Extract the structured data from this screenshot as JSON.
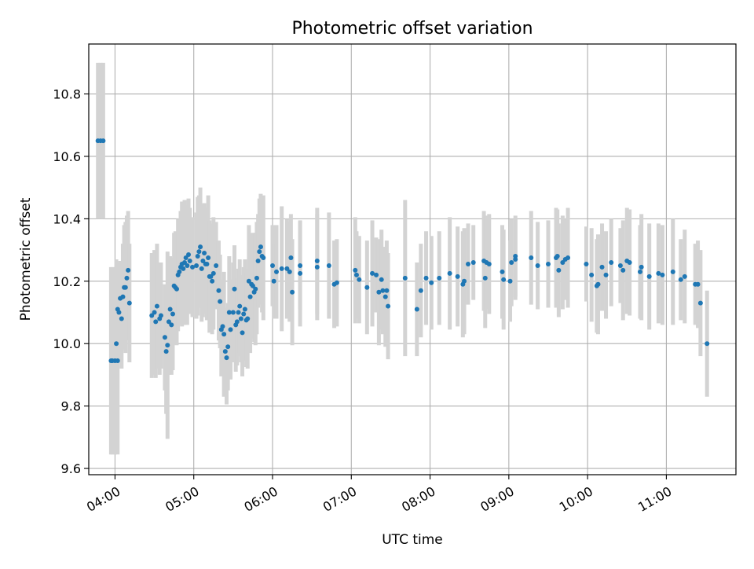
{
  "chart_data": {
    "type": "scatter",
    "title": "Photometric offset variation",
    "xlabel": "UTC time",
    "ylabel": "Photometric offset",
    "x_ticks": [
      "04:00",
      "05:00",
      "06:00",
      "07:00",
      "08:00",
      "09:00",
      "10:00",
      "11:00"
    ],
    "y_ticks": [
      "9.6",
      "9.8",
      "10.0",
      "10.2",
      "10.4",
      "10.6",
      "10.8"
    ],
    "xlim": [
      "03:40",
      "11:53"
    ],
    "ylim": [
      9.58,
      10.96
    ],
    "grid": true,
    "colors": {
      "points": "#1f77b4",
      "errorbars": "#d3d3d3",
      "grid": "#b0b0b0"
    },
    "points": [
      {
        "t": "03:47",
        "y": 10.65,
        "err": 0.25
      },
      {
        "t": "03:49",
        "y": 10.65,
        "err": 0.25
      },
      {
        "t": "03:51",
        "y": 10.65,
        "err": 0.25
      },
      {
        "t": "03:57",
        "y": 9.945,
        "err": 0.3
      },
      {
        "t": "03:58",
        "y": 9.945,
        "err": 0.3
      },
      {
        "t": "04:00",
        "y": 9.945,
        "err": 0.3
      },
      {
        "t": "04:02",
        "y": 9.945,
        "err": 0.3
      },
      {
        "t": "04:01",
        "y": 10.0,
        "err": 0.27
      },
      {
        "t": "04:02",
        "y": 10.11,
        "err": 0.15
      },
      {
        "t": "04:03",
        "y": 10.1,
        "err": 0.16
      },
      {
        "t": "04:04",
        "y": 10.145,
        "err": 0.12
      },
      {
        "t": "04:05",
        "y": 10.08,
        "err": 0.16
      },
      {
        "t": "04:06",
        "y": 10.15,
        "err": 0.17
      },
      {
        "t": "04:07",
        "y": 10.18,
        "err": 0.2
      },
      {
        "t": "04:08",
        "y": 10.18,
        "err": 0.21
      },
      {
        "t": "04:09",
        "y": 10.21,
        "err": 0.2
      },
      {
        "t": "04:10",
        "y": 10.235,
        "err": 0.19
      },
      {
        "t": "04:11",
        "y": 10.13,
        "err": 0.19
      },
      {
        "t": "04:28",
        "y": 10.09,
        "err": 0.2
      },
      {
        "t": "04:30",
        "y": 10.1,
        "err": 0.2
      },
      {
        "t": "04:31",
        "y": 10.07,
        "err": 0.18
      },
      {
        "t": "04:32",
        "y": 10.12,
        "err": 0.2
      },
      {
        "t": "04:34",
        "y": 10.08,
        "err": 0.18
      },
      {
        "t": "04:35",
        "y": 10.09,
        "err": 0.17
      },
      {
        "t": "04:38",
        "y": 10.02,
        "err": 0.17
      },
      {
        "t": "04:39",
        "y": 9.975,
        "err": 0.2
      },
      {
        "t": "04:40",
        "y": 9.995,
        "err": 0.3
      },
      {
        "t": "04:41",
        "y": 10.07,
        "err": 0.17
      },
      {
        "t": "04:42",
        "y": 10.11,
        "err": 0.17
      },
      {
        "t": "04:43",
        "y": 10.06,
        "err": 0.16
      },
      {
        "t": "04:44",
        "y": 10.095,
        "err": 0.18
      },
      {
        "t": "04:45",
        "y": 10.185,
        "err": 0.17
      },
      {
        "t": "04:46",
        "y": 10.18,
        "err": 0.18
      },
      {
        "t": "04:47",
        "y": 10.175,
        "err": 0.18
      },
      {
        "t": "04:48",
        "y": 10.22,
        "err": 0.18
      },
      {
        "t": "04:49",
        "y": 10.23,
        "err": 0.17
      },
      {
        "t": "04:50",
        "y": 10.245,
        "err": 0.18
      },
      {
        "t": "04:51",
        "y": 10.255,
        "err": 0.2
      },
      {
        "t": "04:52",
        "y": 10.24,
        "err": 0.18
      },
      {
        "t": "04:53",
        "y": 10.26,
        "err": 0.2
      },
      {
        "t": "04:54",
        "y": 10.275,
        "err": 0.17
      },
      {
        "t": "04:55",
        "y": 10.25,
        "err": 0.19
      },
      {
        "t": "04:56",
        "y": 10.285,
        "err": 0.18
      },
      {
        "t": "04:57",
        "y": 10.265,
        "err": 0.17
      },
      {
        "t": "04:59",
        "y": 10.245,
        "err": 0.16
      },
      {
        "t": "05:02",
        "y": 10.25,
        "err": 0.17
      },
      {
        "t": "05:03",
        "y": 10.28,
        "err": 0.19
      },
      {
        "t": "05:04",
        "y": 10.295,
        "err": 0.18
      },
      {
        "t": "05:05",
        "y": 10.31,
        "err": 0.19
      },
      {
        "t": "05:06",
        "y": 10.24,
        "err": 0.17
      },
      {
        "t": "05:07",
        "y": 10.265,
        "err": 0.18
      },
      {
        "t": "05:08",
        "y": 10.29,
        "err": 0.16
      },
      {
        "t": "05:09",
        "y": 10.255,
        "err": 0.16
      },
      {
        "t": "05:10",
        "y": 10.255,
        "err": 0.18
      },
      {
        "t": "05:11",
        "y": 10.275,
        "err": 0.2
      },
      {
        "t": "05:12",
        "y": 10.215,
        "err": 0.18
      },
      {
        "t": "05:13",
        "y": 10.215,
        "err": 0.17
      },
      {
        "t": "05:14",
        "y": 10.2,
        "err": 0.17
      },
      {
        "t": "05:15",
        "y": 10.225,
        "err": 0.18
      },
      {
        "t": "05:17",
        "y": 10.25,
        "err": 0.14
      },
      {
        "t": "05:19",
        "y": 10.17,
        "err": 0.16
      },
      {
        "t": "05:20",
        "y": 10.135,
        "err": 0.15
      },
      {
        "t": "05:21",
        "y": 10.045,
        "err": 0.15
      },
      {
        "t": "05:22",
        "y": 10.055,
        "err": 0.15
      },
      {
        "t": "05:23",
        "y": 10.03,
        "err": 0.2
      },
      {
        "t": "05:24",
        "y": 9.975,
        "err": 0.14
      },
      {
        "t": "05:25",
        "y": 9.955,
        "err": 0.15
      },
      {
        "t": "05:26",
        "y": 9.99,
        "err": 0.14
      },
      {
        "t": "05:27",
        "y": 10.1,
        "err": 0.18
      },
      {
        "t": "05:28",
        "y": 10.045,
        "err": 0.16
      },
      {
        "t": "05:30",
        "y": 10.1,
        "err": 0.16
      },
      {
        "t": "05:31",
        "y": 10.175,
        "err": 0.14
      },
      {
        "t": "05:32",
        "y": 10.06,
        "err": 0.15
      },
      {
        "t": "05:33",
        "y": 10.07,
        "err": 0.14
      },
      {
        "t": "05:34",
        "y": 10.1,
        "err": 0.14
      },
      {
        "t": "05:35",
        "y": 10.12,
        "err": 0.15
      },
      {
        "t": "05:36",
        "y": 10.08,
        "err": 0.14
      },
      {
        "t": "05:37",
        "y": 10.035,
        "err": 0.14
      },
      {
        "t": "05:38",
        "y": 10.095,
        "err": 0.15
      },
      {
        "t": "05:39",
        "y": 10.11,
        "err": 0.16
      },
      {
        "t": "05:40",
        "y": 10.075,
        "err": 0.15
      },
      {
        "t": "05:41",
        "y": 10.08,
        "err": 0.16
      },
      {
        "t": "05:42",
        "y": 10.2,
        "err": 0.18
      },
      {
        "t": "05:43",
        "y": 10.15,
        "err": 0.18
      },
      {
        "t": "05:44",
        "y": 10.19,
        "err": 0.16
      },
      {
        "t": "05:45",
        "y": 10.185,
        "err": 0.17
      },
      {
        "t": "05:46",
        "y": 10.165,
        "err": 0.16
      },
      {
        "t": "05:47",
        "y": 10.175,
        "err": 0.18
      },
      {
        "t": "05:48",
        "y": 10.21,
        "err": 0.18
      },
      {
        "t": "05:49",
        "y": 10.265,
        "err": 0.15
      },
      {
        "t": "05:50",
        "y": 10.295,
        "err": 0.17
      },
      {
        "t": "05:51",
        "y": 10.31,
        "err": 0.17
      },
      {
        "t": "05:52",
        "y": 10.28,
        "err": 0.18
      },
      {
        "t": "05:53",
        "y": 10.275,
        "err": 0.2
      },
      {
        "t": "06:00",
        "y": 10.25,
        "err": 0.13
      },
      {
        "t": "06:01",
        "y": 10.2,
        "err": 0.12
      },
      {
        "t": "06:03",
        "y": 10.23,
        "err": 0.15
      },
      {
        "t": "06:07",
        "y": 10.24,
        "err": 0.2
      },
      {
        "t": "06:11",
        "y": 10.24,
        "err": 0.16
      },
      {
        "t": "06:13",
        "y": 10.23,
        "err": 0.16
      },
      {
        "t": "06:14",
        "y": 10.275,
        "err": 0.14
      },
      {
        "t": "06:15",
        "y": 10.165,
        "err": 0.17
      },
      {
        "t": "06:21",
        "y": 10.225,
        "err": 0.17
      },
      {
        "t": "06:21",
        "y": 10.25,
        "err": 0.14
      },
      {
        "t": "06:34",
        "y": 10.265,
        "err": 0.17
      },
      {
        "t": "06:34",
        "y": 10.245,
        "err": 0.17
      },
      {
        "t": "06:43",
        "y": 10.25,
        "err": 0.17
      },
      {
        "t": "06:47",
        "y": 10.19,
        "err": 0.14
      },
      {
        "t": "06:49",
        "y": 10.195,
        "err": 0.14
      },
      {
        "t": "07:03",
        "y": 10.235,
        "err": 0.17
      },
      {
        "t": "07:04",
        "y": 10.22,
        "err": 0.14
      },
      {
        "t": "07:06",
        "y": 10.205,
        "err": 0.14
      },
      {
        "t": "07:12",
        "y": 10.18,
        "err": 0.15
      },
      {
        "t": "07:16",
        "y": 10.225,
        "err": 0.17
      },
      {
        "t": "07:19",
        "y": 10.22,
        "err": 0.12
      },
      {
        "t": "07:21",
        "y": 10.165,
        "err": 0.17
      },
      {
        "t": "07:23",
        "y": 10.205,
        "err": 0.16
      },
      {
        "t": "07:24",
        "y": 10.17,
        "err": 0.14
      },
      {
        "t": "07:26",
        "y": 10.15,
        "err": 0.16
      },
      {
        "t": "07:27",
        "y": 10.17,
        "err": 0.16
      },
      {
        "t": "07:28",
        "y": 10.12,
        "err": 0.17
      },
      {
        "t": "07:41",
        "y": 10.21,
        "err": 0.25
      },
      {
        "t": "07:50",
        "y": 10.11,
        "err": 0.15
      },
      {
        "t": "07:53",
        "y": 10.17,
        "err": 0.15
      },
      {
        "t": "07:57",
        "y": 10.21,
        "err": 0.15
      },
      {
        "t": "08:01",
        "y": 10.195,
        "err": 0.15
      },
      {
        "t": "08:07",
        "y": 10.21,
        "err": 0.15
      },
      {
        "t": "08:15",
        "y": 10.225,
        "err": 0.18
      },
      {
        "t": "08:21",
        "y": 10.215,
        "err": 0.16
      },
      {
        "t": "08:25",
        "y": 10.19,
        "err": 0.17
      },
      {
        "t": "08:26",
        "y": 10.2,
        "err": 0.17
      },
      {
        "t": "08:29",
        "y": 10.255,
        "err": 0.13
      },
      {
        "t": "08:33",
        "y": 10.26,
        "err": 0.12
      },
      {
        "t": "08:41",
        "y": 10.265,
        "err": 0.16
      },
      {
        "t": "08:42",
        "y": 10.21,
        "err": 0.16
      },
      {
        "t": "08:43",
        "y": 10.26,
        "err": 0.15
      },
      {
        "t": "08:45",
        "y": 10.255,
        "err": 0.16
      },
      {
        "t": "08:55",
        "y": 10.23,
        "err": 0.15
      },
      {
        "t": "08:56",
        "y": 10.205,
        "err": 0.16
      },
      {
        "t": "09:01",
        "y": 10.2,
        "err": 0.13
      },
      {
        "t": "09:02",
        "y": 10.26,
        "err": 0.14
      },
      {
        "t": "09:05",
        "y": 10.28,
        "err": 0.13
      },
      {
        "t": "09:05",
        "y": 10.27,
        "err": 0.13
      },
      {
        "t": "09:17",
        "y": 10.275,
        "err": 0.15
      },
      {
        "t": "09:22",
        "y": 10.25,
        "err": 0.14
      },
      {
        "t": "09:30",
        "y": 10.255,
        "err": 0.14
      },
      {
        "t": "09:36",
        "y": 10.275,
        "err": 0.16
      },
      {
        "t": "09:37",
        "y": 10.28,
        "err": 0.15
      },
      {
        "t": "09:38",
        "y": 10.235,
        "err": 0.15
      },
      {
        "t": "09:41",
        "y": 10.26,
        "err": 0.15
      },
      {
        "t": "09:43",
        "y": 10.27,
        "err": 0.13
      },
      {
        "t": "09:45",
        "y": 10.275,
        "err": 0.16
      },
      {
        "t": "09:59",
        "y": 10.255,
        "err": 0.12
      },
      {
        "t": "10:03",
        "y": 10.22,
        "err": 0.15
      },
      {
        "t": "10:07",
        "y": 10.185,
        "err": 0.15
      },
      {
        "t": "10:08",
        "y": 10.19,
        "err": 0.16
      },
      {
        "t": "10:11",
        "y": 10.245,
        "err": 0.14
      },
      {
        "t": "10:14",
        "y": 10.22,
        "err": 0.14
      },
      {
        "t": "10:18",
        "y": 10.26,
        "err": 0.14
      },
      {
        "t": "10:25",
        "y": 10.25,
        "err": 0.12
      },
      {
        "t": "10:27",
        "y": 10.235,
        "err": 0.16
      },
      {
        "t": "10:30",
        "y": 10.265,
        "err": 0.17
      },
      {
        "t": "10:32",
        "y": 10.26,
        "err": 0.17
      },
      {
        "t": "10:40",
        "y": 10.23,
        "err": 0.15
      },
      {
        "t": "10:41",
        "y": 10.245,
        "err": 0.17
      },
      {
        "t": "10:47",
        "y": 10.215,
        "err": 0.17
      },
      {
        "t": "10:54",
        "y": 10.225,
        "err": 0.16
      },
      {
        "t": "10:57",
        "y": 10.22,
        "err": 0.16
      },
      {
        "t": "11:05",
        "y": 10.23,
        "err": 0.17
      },
      {
        "t": "11:11",
        "y": 10.205,
        "err": 0.13
      },
      {
        "t": "11:14",
        "y": 10.215,
        "err": 0.15
      },
      {
        "t": "11:22",
        "y": 10.19,
        "err": 0.13
      },
      {
        "t": "11:24",
        "y": 10.19,
        "err": 0.14
      },
      {
        "t": "11:26",
        "y": 10.13,
        "err": 0.17
      },
      {
        "t": "11:31",
        "y": 10.0,
        "err": 0.17
      }
    ]
  }
}
